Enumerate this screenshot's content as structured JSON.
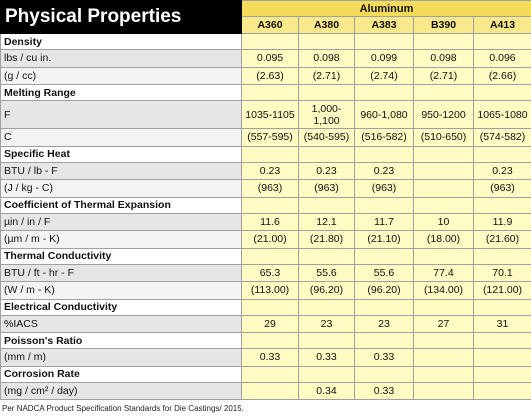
{
  "header": {
    "title": "Physical Properties",
    "group": "Aluminum",
    "alloys": [
      "A360",
      "A380",
      "A383",
      "B390",
      "A413"
    ]
  },
  "sections": [
    {
      "title": "Density",
      "rows": [
        {
          "label": "lbs / cu in.",
          "values": [
            "0.095",
            "0.098",
            "0.099",
            "0.098",
            "0.096"
          ]
        },
        {
          "label": "(g / cc)",
          "values": [
            "(2.63)",
            "(2.71)",
            "(2.74)",
            "(2.71)",
            "(2.66)"
          ]
        }
      ]
    },
    {
      "title": "Melting Range",
      "rows": [
        {
          "label": "F",
          "values": [
            "1035-1105",
            "1,000-1,100",
            "960-1,080",
            "950-1200",
            "1065-1080"
          ]
        },
        {
          "label": "C",
          "values": [
            "(557-595)",
            "(540-595)",
            "(516-582)",
            "(510-650)",
            "(574-582)"
          ]
        }
      ]
    },
    {
      "title": "Specific Heat",
      "rows": [
        {
          "label": "BTU / lb - F",
          "values": [
            "0.23",
            "0.23",
            "0.23",
            null,
            "0.23"
          ]
        },
        {
          "label": "(J / kg - C)",
          "values": [
            "(963)",
            "(963)",
            "(963)",
            null,
            "(963)"
          ]
        }
      ]
    },
    {
      "title": "Coefficient of Thermal Expansion",
      "rows": [
        {
          "label": "µin / in /  F",
          "values": [
            "11.6",
            "12.1",
            "11.7",
            "10",
            "11.9"
          ]
        },
        {
          "label": "(µm / m - K)",
          "values": [
            "(21.00)",
            "(21.80)",
            "(21.10)",
            "(18.00)",
            "(21.60)"
          ]
        }
      ]
    },
    {
      "title": "Thermal Conductivity",
      "rows": [
        {
          "label": "BTU / ft - hr - F",
          "values": [
            "65.3",
            "55.6",
            "55.6",
            "77.4",
            "70.1"
          ]
        },
        {
          "label": "(W / m - K)",
          "values": [
            "(113.00)",
            "(96.20)",
            "(96.20)",
            "(134.00)",
            "(121.00)"
          ]
        }
      ]
    },
    {
      "title": "Electrical Conductivity",
      "rows": [
        {
          "label": "%IACS",
          "values": [
            "29",
            "23",
            "23",
            "27",
            "31"
          ]
        }
      ]
    },
    {
      "title": "Poisson's Ratio",
      "rows": [
        {
          "label": "(mm / m)",
          "values": [
            "0.33",
            "0.33",
            "0.33",
            null,
            null
          ]
        }
      ]
    },
    {
      "title": "Corrosion Rate",
      "rows": [
        {
          "label": "(mg / cm² / day)",
          "values": [
            null,
            "0.34",
            "0.33",
            null,
            null
          ]
        }
      ]
    }
  ],
  "footnote": "Per NADCA Product Specification Standards for Die Castings/ 2015."
}
